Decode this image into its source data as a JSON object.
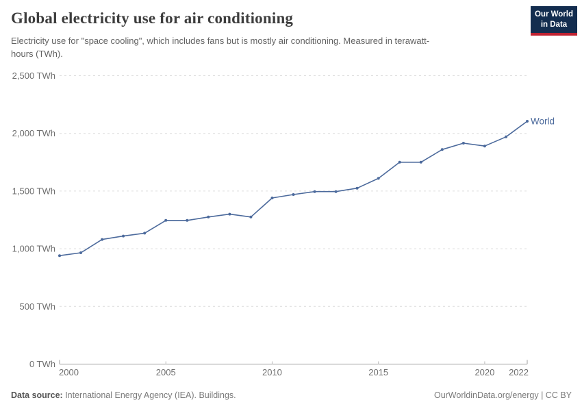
{
  "header": {
    "title": "Global electricity use for air conditioning",
    "subtitle": "Electricity use for \"space cooling\", which includes fans but is mostly air conditioning. Measured in terawatt-hours (TWh).",
    "logo": {
      "line1": "Our World",
      "line2": "in Data"
    }
  },
  "chart_data": {
    "type": "line",
    "title": "Global electricity use for air conditioning",
    "unit": "TWh",
    "x": [
      2000,
      2001,
      2002,
      2003,
      2004,
      2005,
      2006,
      2007,
      2008,
      2009,
      2010,
      2011,
      2012,
      2013,
      2014,
      2015,
      2016,
      2017,
      2018,
      2019,
      2020,
      2021,
      2022
    ],
    "series": [
      {
        "name": "World",
        "color": "#4C6A9C",
        "values": [
          940,
          965,
          1080,
          1110,
          1135,
          1245,
          1245,
          1275,
          1300,
          1275,
          1440,
          1470,
          1495,
          1495,
          1525,
          1610,
          1750,
          1750,
          1860,
          1915,
          1890,
          1970,
          2105
        ]
      }
    ],
    "ylim": [
      0,
      2500
    ],
    "yticks": [
      0,
      500,
      1000,
      1500,
      2000,
      2500
    ],
    "ytick_labels": [
      "0 TWh",
      "500 TWh",
      "1,000 TWh",
      "1,500 TWh",
      "2,000 TWh",
      "2,500 TWh"
    ],
    "xticks": [
      2000,
      2005,
      2010,
      2015,
      2020,
      2022
    ],
    "grid": "horizontal dashed",
    "legend": "end-of-line label"
  },
  "footer": {
    "source_label": "Data source:",
    "source_text": " International Energy Agency (IEA). Buildings.",
    "url": "OurWorldinData.org/energy",
    "separator": " | ",
    "license": "CC BY"
  },
  "colors": {
    "line": "#4C6A9C",
    "logo_bg": "#132D4F",
    "logo_stripe": "#BF2231",
    "grid": "#DCDCDC",
    "axis": "#9C9C9C",
    "minor_tick": "#BBBBBB",
    "tick_text": "#6E6E6E",
    "title_text": "#3D3D3D",
    "subtitle_text": "#616161"
  }
}
